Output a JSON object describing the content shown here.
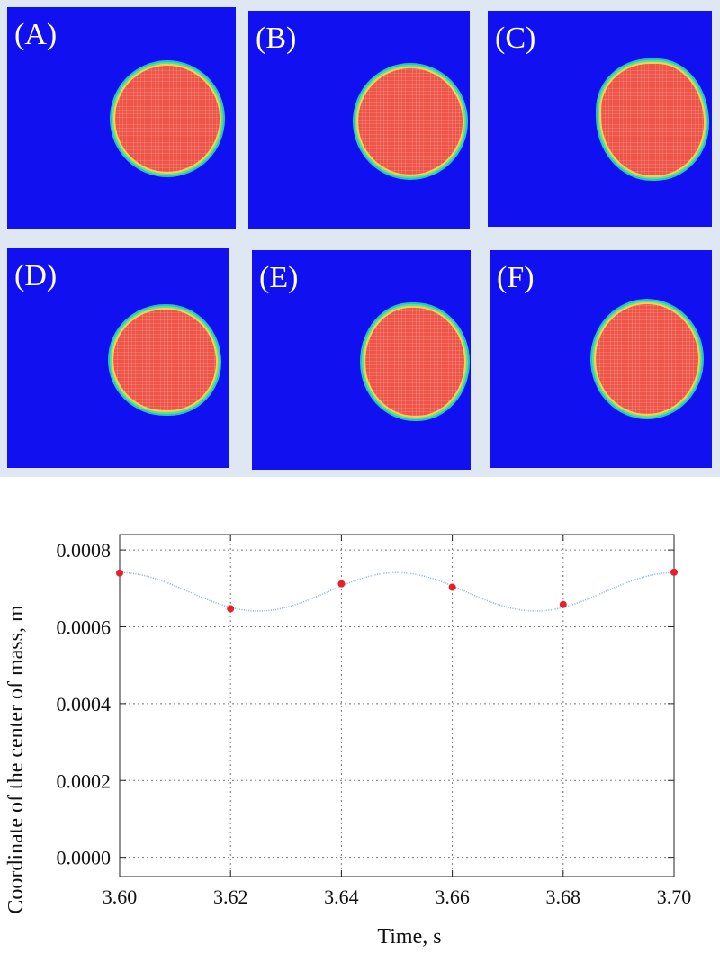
{
  "panels": [
    {
      "label": "(A)"
    },
    {
      "label": "(B)"
    },
    {
      "label": "(C)"
    },
    {
      "label": "(D)"
    },
    {
      "label": "(E)"
    },
    {
      "label": "(F)"
    }
  ],
  "colors": {
    "panel_background": "#1010f0",
    "droplet": "#ee5548",
    "curve": "#8fb0e0",
    "marker": "#e8202a"
  },
  "chart_data": {
    "type": "line",
    "title": "",
    "xlabel": "Time, s",
    "ylabel": "Coordinate of the center of mass, m",
    "xlim": [
      3.6,
      3.7
    ],
    "ylim": [
      -5e-05,
      0.00084
    ],
    "xticks": [
      3.6,
      3.62,
      3.64,
      3.66,
      3.68,
      3.7
    ],
    "xtick_labels": [
      "3.60",
      "3.62",
      "3.64",
      "3.66",
      "3.68",
      "3.70"
    ],
    "yticks": [
      0.0,
      0.0002,
      0.0004,
      0.0006,
      0.0008
    ],
    "ytick_labels": [
      "0.0000",
      "0.0002",
      "0.0004",
      "0.0006",
      "0.0008"
    ],
    "grid": true,
    "series": [
      {
        "name": "center of mass",
        "x": [
          3.6,
          3.62,
          3.64,
          3.66,
          3.68,
          3.7
        ],
        "y": [
          0.00074,
          0.000647,
          0.000712,
          0.000703,
          0.000658,
          0.000742
        ]
      }
    ],
    "curve_model": {
      "mean": 0.000691,
      "amplitude": 5e-05,
      "period": 0.05,
      "phase_at": 3.6
    }
  }
}
